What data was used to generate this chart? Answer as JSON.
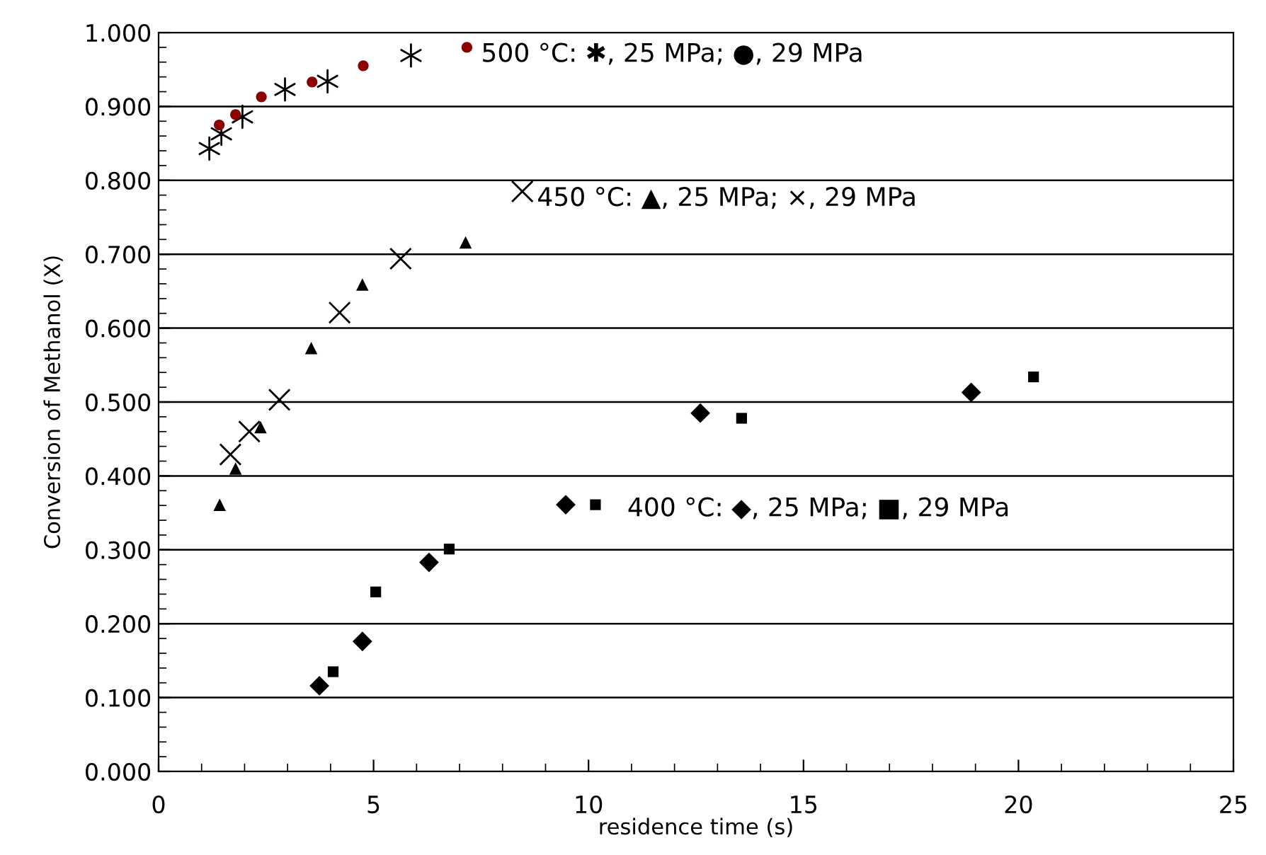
{
  "chart_data": {
    "type": "scatter",
    "xlabel": "residence time (s)",
    "ylabel": "Conversion of Methanol (X)",
    "xlim": [
      0,
      25
    ],
    "xticks": [
      0,
      5,
      10,
      15,
      20,
      25
    ],
    "ylim": [
      0,
      1
    ],
    "yticks": [
      {
        "value": 0,
        "label": "0.000"
      },
      {
        "value": 0.1,
        "label": "0.100"
      },
      {
        "value": 0.2,
        "label": "0.200"
      },
      {
        "value": 0.3,
        "label": "0.300"
      },
      {
        "value": 0.4,
        "label": "0.400"
      },
      {
        "value": 0.5,
        "label": "0.500"
      },
      {
        "value": 0.6,
        "label": "0.600"
      },
      {
        "value": 0.7,
        "label": "0.700"
      },
      {
        "value": 0.8,
        "label": "0.800"
      },
      {
        "value": 0.9,
        "label": "0.900"
      },
      {
        "value": 1,
        "label": "1.000"
      }
    ],
    "grid": "y",
    "legend": false,
    "series": [
      {
        "color": "#000000",
        "x": [
          1.18,
          1.46,
          1.95,
          2.94,
          3.93,
          5.87
        ],
        "values": [
          0.843,
          0.863,
          0.886,
          0.923,
          0.934,
          0.969
        ]
      },
      {
        "marker": "circle",
        "color": "#8b0000",
        "x": [
          1.41,
          1.79,
          2.39,
          3.57,
          4.76,
          7.17
        ],
        "values": [
          0.875,
          0.889,
          0.913,
          0.933,
          0.955,
          0.98
        ]
      },
      {
        "marker": "triangle",
        "color": "#000000",
        "x": [
          1.42,
          1.79,
          2.37,
          3.55,
          4.74,
          7.14
        ],
        "values": [
          0.361,
          0.41,
          0.466,
          0.573,
          0.659,
          0.716
        ]
      },
      {
        "marker": "cross",
        "color": "#000000",
        "x": [
          1.67,
          2.11,
          2.81,
          4.21,
          5.63,
          8.46
        ],
        "values": [
          0.429,
          0.46,
          0.503,
          0.621,
          0.694,
          0.785
        ]
      },
      {
        "marker": "diamond",
        "color": "#000000",
        "x": [
          3.74,
          4.74,
          6.29,
          9.47,
          12.6,
          18.9
        ],
        "values": [
          0.116,
          0.176,
          0.283,
          0.361,
          0.485,
          0.513
        ]
      },
      {
        "marker": "square",
        "color": "#000000",
        "x": [
          4.06,
          5.05,
          6.76,
          10.16,
          13.56,
          20.35
        ],
        "values": [
          0.135,
          0.243,
          0.301,
          0.361,
          0.478,
          0.534
        ]
      }
    ],
    "annotations": [
      "500 °C: ✱, 25 MPa; ●, 29 MPa",
      "450 °C: ▲, 25 MPa; ×, 29 MPa",
      "400 °C: ◆, 25 MPa; ■, 29 MPa"
    ]
  }
}
